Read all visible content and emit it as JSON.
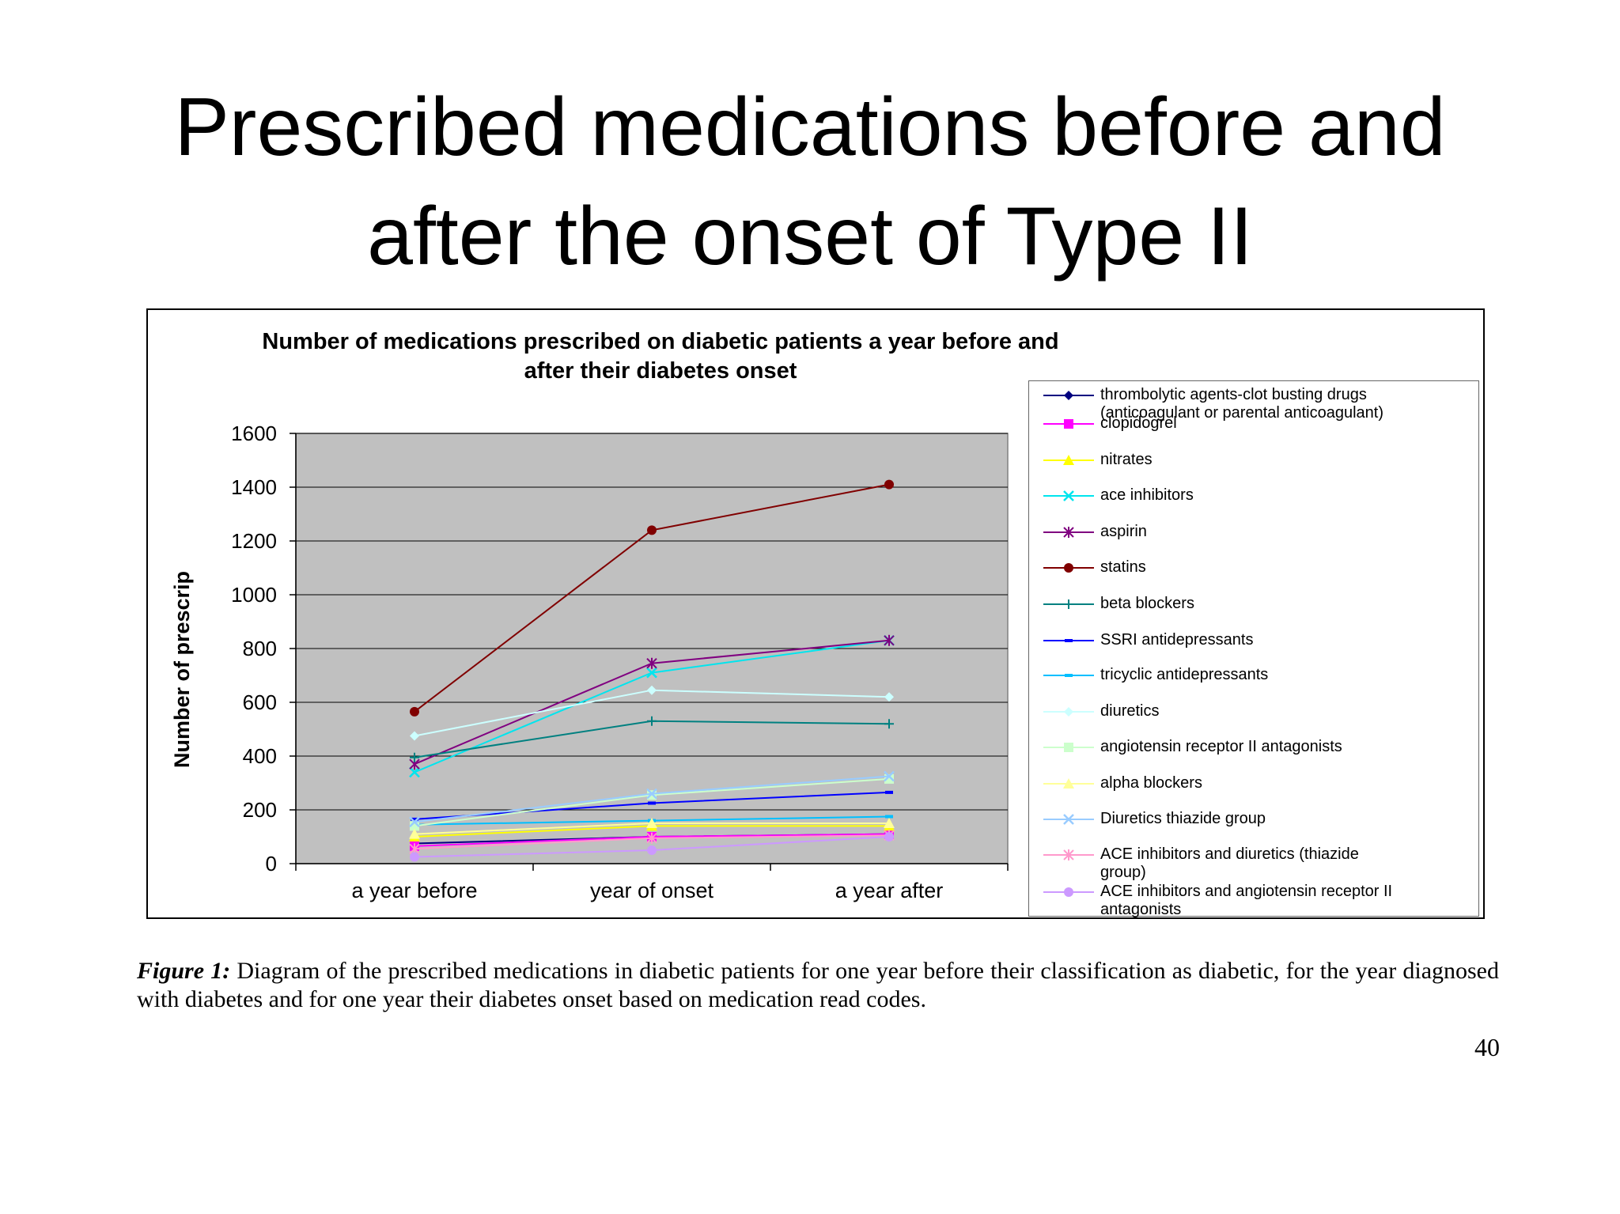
{
  "slide": {
    "title_line1": "Prescribed medications before and",
    "title_line2": "after the onset of Type II",
    "caption_label": "Figure 1:",
    "caption_text": "Diagram of the prescribed medications in diabetic patients for one year before their classification as diabetic, for the year diagnosed with diabetes and for one year their diabetes onset based on medication read codes.",
    "page_number": "40"
  },
  "chart_data": {
    "type": "line",
    "title_line1": "Number of medications prescribed on diabetic patients a year before and",
    "title_line2": "after their diabetes onset",
    "ylabel": "Number of prescrip",
    "xlabel": "",
    "categories": [
      "a year before",
      "year of onset",
      "a year after"
    ],
    "ylim": [
      0,
      1600
    ],
    "yticks": [
      0,
      200,
      400,
      600,
      800,
      1000,
      1200,
      1400,
      1600
    ],
    "grid": true,
    "plot_background": "#c0c0c0",
    "legend_position": "right",
    "series": [
      {
        "name": "thrombolytic agents-clot busting drugs (anticoagulant or parental anticoagulant)",
        "name_lines": [
          "thrombolytic agents-clot busting drugs",
          "(anticoagulant or parental anticoagulant)"
        ],
        "color": "#000080",
        "marker": "diamond",
        "values": [
          75,
          100,
          110
        ]
      },
      {
        "name": "clopidogrel",
        "name_lines": [
          "clopidogrel"
        ],
        "color": "#ff00ff",
        "marker": "square",
        "values": [
          65,
          100,
          110
        ]
      },
      {
        "name": "nitrates",
        "name_lines": [
          "nitrates"
        ],
        "color": "#ffff00",
        "marker": "triangle",
        "values": [
          100,
          140,
          140
        ]
      },
      {
        "name": "ace inhibitors",
        "name_lines": [
          "ace inhibitors"
        ],
        "color": "#00e5ee",
        "marker": "x",
        "values": [
          340,
          710,
          830
        ]
      },
      {
        "name": "aspirin",
        "name_lines": [
          "aspirin"
        ],
        "color": "#800080",
        "marker": "star",
        "values": [
          370,
          745,
          830
        ]
      },
      {
        "name": "statins",
        "name_lines": [
          "statins"
        ],
        "color": "#800000",
        "marker": "circle",
        "values": [
          565,
          1240,
          1410
        ]
      },
      {
        "name": "beta blockers",
        "name_lines": [
          "beta blockers"
        ],
        "color": "#008080",
        "marker": "plus",
        "values": [
          395,
          530,
          520
        ]
      },
      {
        "name": "SSRI antidepressants",
        "name_lines": [
          "SSRI antidepressants"
        ],
        "color": "#0000ff",
        "marker": "dash",
        "values": [
          165,
          225,
          265
        ]
      },
      {
        "name": "tricyclic antidepressants",
        "name_lines": [
          "tricyclic antidepressants"
        ],
        "color": "#00bfff",
        "marker": "dash",
        "values": [
          145,
          160,
          175
        ]
      },
      {
        "name": "diuretics",
        "name_lines": [
          "diuretics"
        ],
        "color": "#ccffff",
        "marker": "diamond",
        "values": [
          475,
          645,
          620
        ]
      },
      {
        "name": "angiotensin receptor II antagonists",
        "name_lines": [
          "angiotensin receptor II antagonists"
        ],
        "color": "#ccffcc",
        "marker": "square",
        "values": [
          140,
          255,
          315
        ]
      },
      {
        "name": "alpha blockers",
        "name_lines": [
          "alpha blockers"
        ],
        "color": "#ffff99",
        "marker": "triangle",
        "values": [
          110,
          150,
          150
        ]
      },
      {
        "name": "Diuretics thiazide group",
        "name_lines": [
          "Diuretics thiazide group"
        ],
        "color": "#99ccff",
        "marker": "x",
        "values": [
          155,
          260,
          325
        ]
      },
      {
        "name": "ACE inhibitors and diuretics (thiazide group)",
        "name_lines": [
          "ACE inhibitors and diuretics (thiazide",
          "group)"
        ],
        "color": "#ff99cc",
        "marker": "star",
        "values": [
          55,
          95,
          105
        ]
      },
      {
        "name": "ACE inhibitors and angiotensin receptor II antagonists",
        "name_lines": [
          "ACE inhibitors and angiotensin receptor II",
          "antagonists"
        ],
        "color": "#cc99ff",
        "marker": "circle",
        "values": [
          25,
          50,
          100
        ]
      }
    ]
  }
}
